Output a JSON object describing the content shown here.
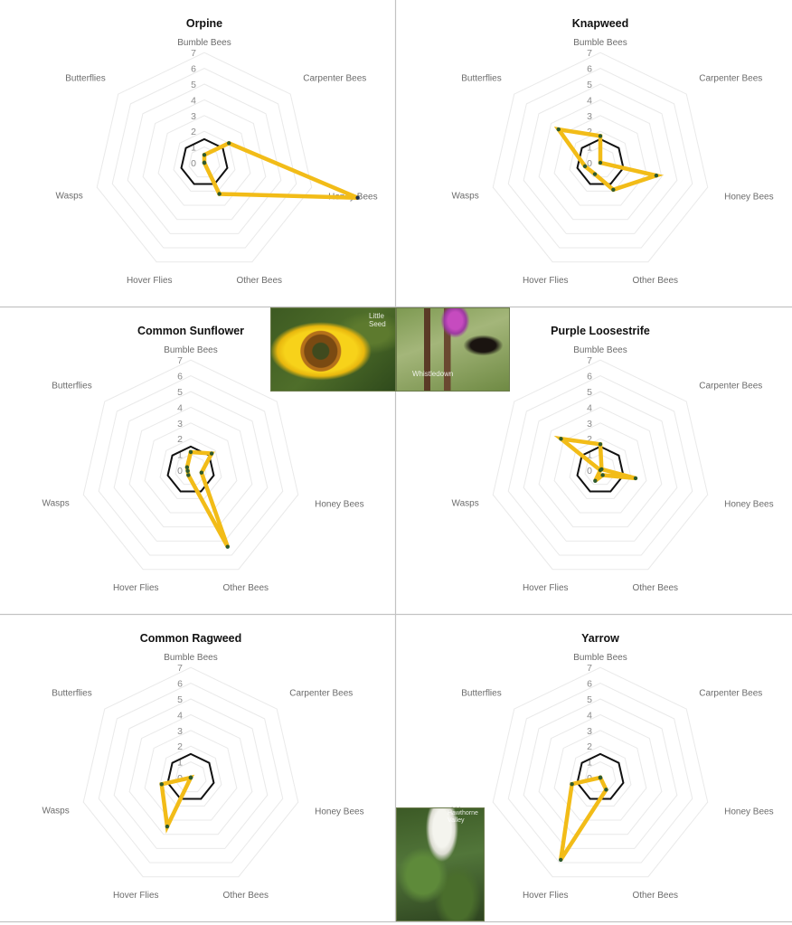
{
  "chart_data": {
    "type": "radar",
    "axes": [
      "Bumble Bees",
      "Carpenter Bees",
      "Honey Bees",
      "Other Bees",
      "Hover Flies",
      "Wasps",
      "Butterflies"
    ],
    "tick_labels": [
      "0",
      "1",
      "2",
      "3",
      "4",
      "5",
      "6",
      "7"
    ],
    "rlim": [
      0,
      7
    ],
    "grid": true,
    "reference_value": 1.5,
    "series_color": "#F2BC18",
    "marker_color": "#2E5A2E",
    "reference_color": "#111111",
    "charts": [
      {
        "title": "Orpine",
        "values": [
          0.5,
          2.0,
          10.0,
          2.2,
          0,
          0,
          0
        ]
      },
      {
        "title": "Knapweed",
        "values": [
          1.7,
          0,
          3.65,
          1.9,
          0.8,
          1.0,
          3.4
        ]
      },
      {
        "title": "Common Sunflower",
        "values": [
          1.15,
          1.7,
          0.7,
          5.4,
          0.35,
          0.2,
          0.3
        ]
      },
      {
        "title": "Purple Loosestrife",
        "values": [
          1.65,
          0.1,
          2.3,
          0.35,
          0.75,
          0,
          3.2
        ]
      },
      {
        "title": "Common Ragweed",
        "values": [
          0,
          0,
          0,
          0,
          3.45,
          1.9,
          0
        ]
      },
      {
        "title": "Yarrow",
        "values": [
          0,
          0,
          0,
          0.85,
          5.8,
          1.85,
          0
        ]
      }
    ]
  },
  "photos": [
    {
      "name": "sunflower-photo",
      "watermark": "Little\nSeed"
    },
    {
      "name": "loosestrife-butterfly-photo",
      "watermark": "Whistledown"
    },
    {
      "name": "yarrow-photo",
      "watermark": "Hawthorne\nValley"
    }
  ]
}
